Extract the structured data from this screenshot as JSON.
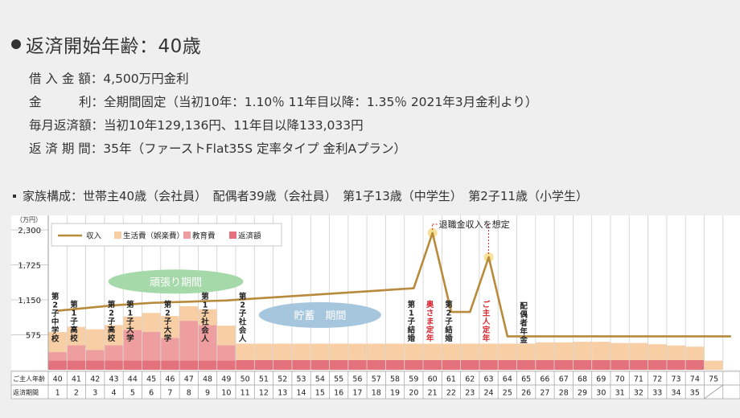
{
  "header": {
    "title": "返済開始年齢：40歳",
    "details": [
      "借 入 金 額：4,500万円金利",
      "金　　　利：全期間固定（当初10年：1.10％ 11年目以降：1.35％ 2021年3月金利より）",
      "毎月返済額：当初10年129,136円、11年目以降133,033円",
      "返 済 期 間：35年（ファーストFlat35S 定率タイプ 金利Aプラン）"
    ],
    "family": "家族構成：世帯主40歳（会社員）　配偶者39歳（会社員）　第1子13歳（中学生）　第2子11歳（小学生）"
  },
  "chart_data": {
    "type": "bar",
    "unit_label": "（万円）",
    "y_ticks": [
      575,
      1150,
      1725,
      2300
    ],
    "ylim": [
      0,
      2400
    ],
    "legend": [
      "収入",
      "生活費（娯楽費）",
      "教育費",
      "返済額"
    ],
    "colors": {
      "income": "#b78a3c",
      "living": "#f8cfa5",
      "education": "#ee9e9e",
      "repayment": "#e4727d",
      "ganbari": "#a6d9aa",
      "chochiku": "#a6c6dd",
      "peak": "#f7e09a",
      "red_text": "#d9232d"
    },
    "row_labels": [
      "ご主人年齢",
      "返済期間"
    ],
    "ages": [
      "40",
      "41",
      "42",
      "43",
      "44",
      "45",
      "46",
      "47",
      "48",
      "49",
      "50",
      "51",
      "52",
      "53",
      "54",
      "55",
      "56",
      "57",
      "58",
      "59",
      "60",
      "61",
      "62",
      "63",
      "64",
      "65",
      "66",
      "67",
      "68",
      "69",
      "70",
      "71",
      "72",
      "73",
      "74",
      "75"
    ],
    "periods": [
      "1",
      "2",
      "3",
      "4",
      "5",
      "6",
      "7",
      "8",
      "9",
      "10",
      "11",
      "12",
      "13",
      "14",
      "15",
      "16",
      "17",
      "18",
      "19",
      "20",
      "21",
      "22",
      "23",
      "24",
      "25",
      "26",
      "27",
      "28",
      "29",
      "30",
      "31",
      "32",
      "33",
      "34",
      "35",
      ""
    ],
    "series": [
      {
        "name": "返済額",
        "values": [
          155,
          155,
          155,
          155,
          155,
          155,
          155,
          155,
          155,
          155,
          160,
          160,
          160,
          160,
          160,
          160,
          160,
          160,
          160,
          160,
          160,
          160,
          160,
          160,
          160,
          160,
          160,
          160,
          160,
          160,
          160,
          160,
          160,
          160,
          160,
          0
        ]
      },
      {
        "name": "教育費",
        "values": [
          135,
          250,
          170,
          250,
          500,
          470,
          370,
          650,
          580,
          250,
          0,
          0,
          0,
          0,
          0,
          0,
          0,
          0,
          0,
          0,
          0,
          0,
          0,
          0,
          0,
          0,
          0,
          0,
          0,
          0,
          0,
          0,
          0,
          0,
          0,
          0
        ]
      },
      {
        "name": "生活費（娯楽費）",
        "values": [
          330,
          300,
          340,
          330,
          220,
          310,
          360,
          240,
          260,
          320,
          270,
          270,
          270,
          270,
          270,
          270,
          270,
          270,
          270,
          270,
          270,
          270,
          270,
          270,
          270,
          270,
          290,
          290,
          300,
          300,
          280,
          280,
          260,
          240,
          220,
          150
        ]
      },
      {
        "name": "収入",
        "values": [
          970,
          1000,
          1030,
          1060,
          1080,
          1100,
          1110,
          1120,
          1130,
          1140,
          1160,
          1180,
          1200,
          1220,
          1240,
          1260,
          1280,
          1300,
          1320,
          1340,
          2250,
          950,
          950,
          1850,
          550,
          550,
          550,
          550,
          550,
          550,
          550,
          550,
          550,
          550,
          550,
          550
        ]
      }
    ],
    "events": [
      {
        "age": "40",
        "text": "第2子中学校",
        "color": "#222"
      },
      {
        "age": "41",
        "text": "第1子高校",
        "color": "#222"
      },
      {
        "age": "43",
        "text": "第2子高校",
        "color": "#222"
      },
      {
        "age": "44",
        "text": "第1子大学",
        "color": "#222"
      },
      {
        "age": "46",
        "text": "第2子大学",
        "color": "#222"
      },
      {
        "age": "48",
        "text": "第1子社会人",
        "color": "#222"
      },
      {
        "age": "50",
        "text": "第2子社会人",
        "color": "#222"
      },
      {
        "age": "59",
        "text": "第1子結婚",
        "color": "#222"
      },
      {
        "age": "60",
        "text": "奥さま定年",
        "color": "#d9232d"
      },
      {
        "age": "61",
        "text": "第2子結婚",
        "color": "#222"
      },
      {
        "age": "63",
        "text": "ご主人定年",
        "color": "#d9232d"
      },
      {
        "age": "65",
        "text": "配偶者年金",
        "color": "#222"
      }
    ],
    "annotations": {
      "ganbari": "頑張り期間",
      "chochiku": "貯蓄　期間",
      "retirement": "退職金収入を想定"
    }
  }
}
